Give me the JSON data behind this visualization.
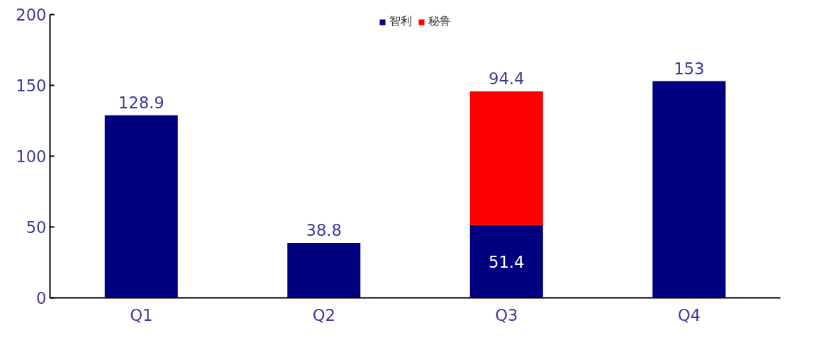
{
  "chart_data": {
    "type": "bar",
    "stacked": true,
    "categories": [
      "Q1",
      "Q2",
      "Q3",
      "Q4"
    ],
    "series": [
      {
        "name": "智利",
        "color": "#000080",
        "values": [
          128.9,
          38.8,
          51.4,
          153
        ]
      },
      {
        "name": "秘鲁",
        "color": "#ff0000",
        "values": [
          null,
          null,
          94.4,
          null
        ]
      }
    ],
    "ylim": [
      0,
      200
    ],
    "yticks": [
      0,
      50,
      100,
      150,
      200
    ],
    "grid": false,
    "legend": "top",
    "data_labels": true
  }
}
